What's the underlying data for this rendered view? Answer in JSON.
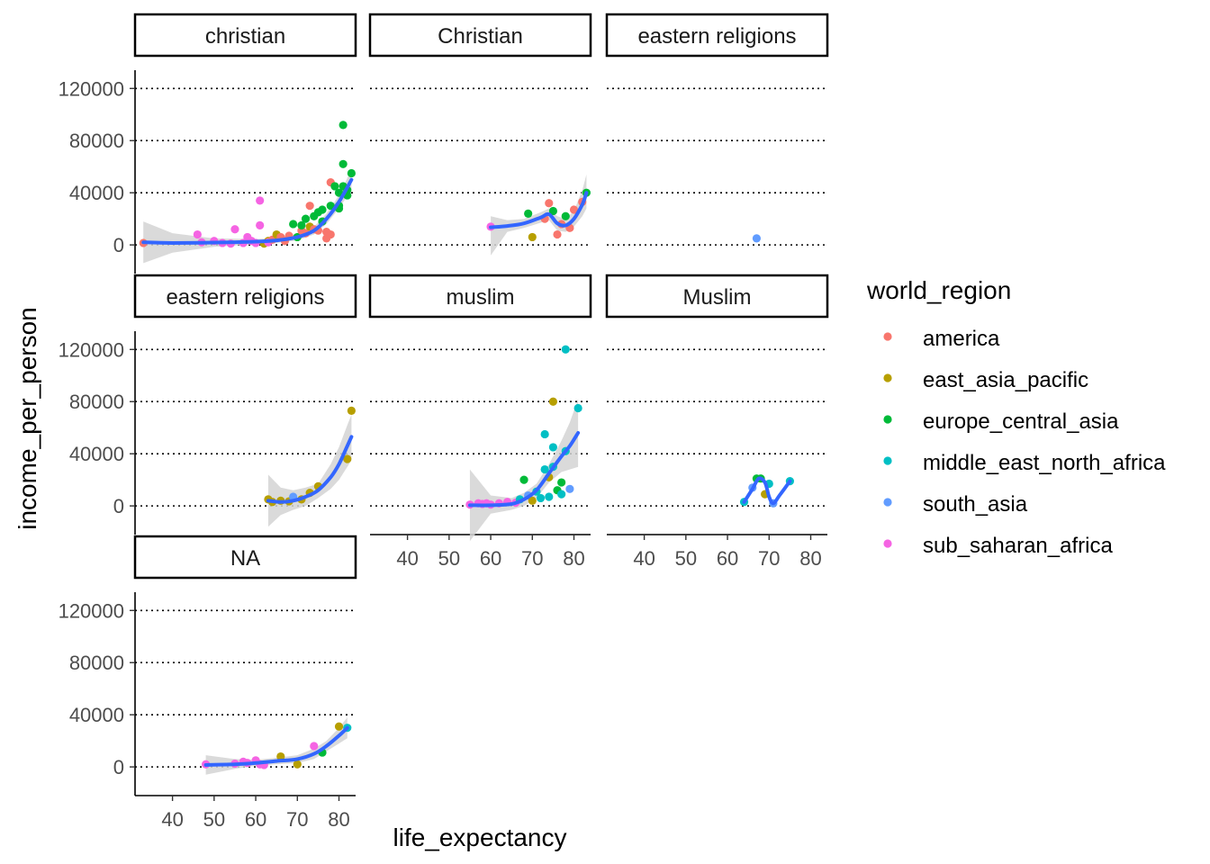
{
  "chart_data": {
    "type": "scatter",
    "xlabel": "life_expectancy",
    "ylabel": "income_per_person",
    "xlim": [
      31,
      84
    ],
    "ylim": [
      -22000,
      134000
    ],
    "x_ticks": [
      40,
      50,
      60,
      70,
      80
    ],
    "y_ticks": [
      0,
      40000,
      80000,
      120000
    ],
    "grid": "major y, dotted",
    "legend": {
      "title": "world_region",
      "position": "right",
      "entries": [
        "america",
        "east_asia_pacific",
        "europe_central_asia",
        "middle_east_north_africa",
        "south_asia",
        "sub_saharan_africa"
      ]
    },
    "colors": {
      "america": "#F8766D",
      "east_asia_pacific": "#B79F00",
      "europe_central_asia": "#00BA38",
      "middle_east_north_africa": "#00BFC4",
      "south_asia": "#619CFF",
      "sub_saharan_africa": "#F564E3",
      "smooth": "#3366FF",
      "ribbon": "#D3D3D3"
    },
    "panels": [
      {
        "title": "christian",
        "points": [
          [
            33,
            1500,
            "america"
          ],
          [
            46,
            8000,
            "sub_saharan_africa"
          ],
          [
            47,
            2000,
            "sub_saharan_africa"
          ],
          [
            50,
            3000,
            "sub_saharan_africa"
          ],
          [
            52,
            1500,
            "sub_saharan_africa"
          ],
          [
            54,
            1000,
            "sub_saharan_africa"
          ],
          [
            55,
            12000,
            "sub_saharan_africa"
          ],
          [
            57,
            1500,
            "sub_saharan_africa"
          ],
          [
            58,
            6000,
            "sub_saharan_africa"
          ],
          [
            59,
            3000,
            "sub_saharan_africa"
          ],
          [
            60,
            1500,
            "sub_saharan_africa"
          ],
          [
            61,
            34000,
            "sub_saharan_africa"
          ],
          [
            61,
            15000,
            "sub_saharan_africa"
          ],
          [
            62,
            1000,
            "east_asia_pacific"
          ],
          [
            63,
            3000,
            "east_asia_pacific"
          ],
          [
            63,
            2000,
            "sub_saharan_africa"
          ],
          [
            64,
            4000,
            "america"
          ],
          [
            65,
            8000,
            "east_asia_pacific"
          ],
          [
            66,
            6000,
            "america"
          ],
          [
            67,
            3000,
            "america"
          ],
          [
            68,
            7000,
            "america"
          ],
          [
            69,
            16000,
            "europe_central_asia"
          ],
          [
            70,
            6000,
            "europe_central_asia"
          ],
          [
            71,
            11000,
            "america"
          ],
          [
            71,
            15000,
            "europe_central_asia"
          ],
          [
            72,
            9000,
            "america"
          ],
          [
            72,
            20000,
            "europe_central_asia"
          ],
          [
            73,
            30000,
            "america"
          ],
          [
            73,
            14000,
            "east_asia_pacific"
          ],
          [
            74,
            12000,
            "america"
          ],
          [
            74,
            22000,
            "europe_central_asia"
          ],
          [
            75,
            11000,
            "america"
          ],
          [
            75,
            25000,
            "europe_central_asia"
          ],
          [
            76,
            18000,
            "europe_central_asia"
          ],
          [
            76,
            27000,
            "europe_central_asia"
          ],
          [
            77,
            10000,
            "america"
          ],
          [
            77,
            5000,
            "america"
          ],
          [
            78,
            8000,
            "america"
          ],
          [
            78,
            30000,
            "europe_central_asia"
          ],
          [
            78,
            48000,
            "america"
          ],
          [
            79,
            45000,
            "europe_central_asia"
          ],
          [
            80,
            28000,
            "europe_central_asia"
          ],
          [
            80,
            40000,
            "europe_central_asia"
          ],
          [
            81,
            62000,
            "europe_central_asia"
          ],
          [
            81,
            45000,
            "europe_central_asia"
          ],
          [
            82,
            38000,
            "europe_central_asia"
          ],
          [
            82,
            42000,
            "europe_central_asia"
          ],
          [
            83,
            55000,
            "europe_central_asia"
          ],
          [
            81,
            92000,
            "europe_central_asia"
          ],
          [
            80,
            30000,
            "europe_central_asia"
          ]
        ],
        "smooth": [
          [
            33,
            2000
          ],
          [
            40,
            1500
          ],
          [
            50,
            1800
          ],
          [
            60,
            2500
          ],
          [
            65,
            3500
          ],
          [
            70,
            6000
          ],
          [
            74,
            11000
          ],
          [
            77,
            20000
          ],
          [
            80,
            33000
          ],
          [
            83,
            50000
          ]
        ],
        "ribbon": [
          [
            33,
            18000,
            -14000
          ],
          [
            40,
            9000,
            -6000
          ],
          [
            50,
            5000,
            -1500
          ],
          [
            60,
            4500,
            500
          ],
          [
            65,
            5500,
            1500
          ],
          [
            70,
            8500,
            3500
          ],
          [
            74,
            14000,
            8000
          ],
          [
            77,
            24000,
            16000
          ],
          [
            80,
            38000,
            28000
          ],
          [
            83,
            58000,
            42000
          ]
        ]
      },
      {
        "title": "Christian",
        "points": [
          [
            60,
            14000,
            "sub_saharan_africa"
          ],
          [
            69,
            24000,
            "europe_central_asia"
          ],
          [
            70,
            6000,
            "east_asia_pacific"
          ],
          [
            73,
            20000,
            "america"
          ],
          [
            74,
            32000,
            "america"
          ],
          [
            75,
            26000,
            "europe_central_asia"
          ],
          [
            76,
            8000,
            "america"
          ],
          [
            77,
            16000,
            "america"
          ],
          [
            78,
            22000,
            "europe_central_asia"
          ],
          [
            79,
            13000,
            "america"
          ],
          [
            80,
            27000,
            "america"
          ],
          [
            82,
            33000,
            "america"
          ],
          [
            83,
            40000,
            "europe_central_asia"
          ]
        ],
        "smooth": [
          [
            60,
            13500
          ],
          [
            64,
            14500
          ],
          [
            68,
            16500
          ],
          [
            72,
            21000
          ],
          [
            74,
            23500
          ],
          [
            76,
            16500
          ],
          [
            78,
            15000
          ],
          [
            80,
            20000
          ],
          [
            82,
            31000
          ],
          [
            83,
            40000
          ]
        ],
        "ribbon": [
          [
            60,
            22000,
            -8000
          ],
          [
            64,
            19000,
            10000
          ],
          [
            68,
            20000,
            13000
          ],
          [
            72,
            25000,
            17000
          ],
          [
            74,
            28000,
            19000
          ],
          [
            76,
            22000,
            11000
          ],
          [
            78,
            20000,
            10000
          ],
          [
            80,
            26000,
            14000
          ],
          [
            82,
            42000,
            22000
          ],
          [
            83,
            54000,
            28000
          ]
        ]
      },
      {
        "title": "eastern   religions",
        "points": [
          [
            67,
            5000,
            "south_asia"
          ]
        ],
        "smooth": [],
        "ribbon": []
      },
      {
        "title": "eastern religions",
        "points": [
          [
            63,
            5000,
            "east_asia_pacific"
          ],
          [
            64,
            3000,
            "east_asia_pacific"
          ],
          [
            66,
            4000,
            "east_asia_pacific"
          ],
          [
            68,
            3500,
            "east_asia_pacific"
          ],
          [
            69,
            7000,
            "south_asia"
          ],
          [
            71,
            5000,
            "east_asia_pacific"
          ],
          [
            73,
            10000,
            "east_asia_pacific"
          ],
          [
            75,
            15000,
            "east_asia_pacific"
          ],
          [
            82,
            36000,
            "east_asia_pacific"
          ],
          [
            83,
            73000,
            "east_asia_pacific"
          ]
        ],
        "smooth": [
          [
            63,
            4000
          ],
          [
            66,
            3000
          ],
          [
            69,
            4000
          ],
          [
            72,
            7000
          ],
          [
            75,
            12000
          ],
          [
            78,
            22000
          ],
          [
            80,
            32000
          ],
          [
            82,
            46000
          ],
          [
            83,
            53000
          ]
        ],
        "ribbon": [
          [
            63,
            24000,
            -16000
          ],
          [
            66,
            14000,
            -7000
          ],
          [
            69,
            12000,
            -3000
          ],
          [
            72,
            14000,
            0
          ],
          [
            75,
            17000,
            6000
          ],
          [
            78,
            32000,
            13000
          ],
          [
            80,
            45000,
            20000
          ],
          [
            82,
            62000,
            30000
          ],
          [
            83,
            70000,
            35000
          ]
        ]
      },
      {
        "title": "muslim",
        "points": [
          [
            55,
            1000,
            "sub_saharan_africa"
          ],
          [
            57,
            2000,
            "sub_saharan_africa"
          ],
          [
            58,
            1500,
            "sub_saharan_africa"
          ],
          [
            59,
            2000,
            "sub_saharan_africa"
          ],
          [
            60,
            1000,
            "sub_saharan_africa"
          ],
          [
            62,
            2000,
            "sub_saharan_africa"
          ],
          [
            64,
            3000,
            "sub_saharan_africa"
          ],
          [
            66,
            2500,
            "sub_saharan_africa"
          ],
          [
            67,
            5000,
            "middle_east_north_africa"
          ],
          [
            68,
            20000,
            "europe_central_asia"
          ],
          [
            69,
            8000,
            "south_asia"
          ],
          [
            70,
            4000,
            "east_asia_pacific"
          ],
          [
            71,
            11000,
            "middle_east_north_africa"
          ],
          [
            72,
            6000,
            "middle_east_north_africa"
          ],
          [
            73,
            55000,
            "middle_east_north_africa"
          ],
          [
            73,
            28000,
            "middle_east_north_africa"
          ],
          [
            74,
            22000,
            "east_asia_pacific"
          ],
          [
            74,
            7000,
            "middle_east_north_africa"
          ],
          [
            75,
            45000,
            "middle_east_north_africa"
          ],
          [
            75,
            80000,
            "east_asia_pacific"
          ],
          [
            75,
            30000,
            "middle_east_north_africa"
          ],
          [
            76,
            12000,
            "europe_central_asia"
          ],
          [
            77,
            18000,
            "europe_central_asia"
          ],
          [
            77,
            9000,
            "middle_east_north_africa"
          ],
          [
            78,
            120000,
            "middle_east_north_africa"
          ],
          [
            78,
            42000,
            "middle_east_north_africa"
          ],
          [
            79,
            13000,
            "south_asia"
          ],
          [
            81,
            75000,
            "middle_east_north_africa"
          ]
        ],
        "smooth": [
          [
            55,
            500
          ],
          [
            60,
            500
          ],
          [
            65,
            1500
          ],
          [
            68,
            5000
          ],
          [
            71,
            12000
          ],
          [
            74,
            25000
          ],
          [
            77,
            38000
          ],
          [
            79,
            46000
          ],
          [
            81,
            56000
          ]
        ],
        "ribbon": [
          [
            55,
            28000,
            -27000
          ],
          [
            60,
            8000,
            -6000
          ],
          [
            65,
            6000,
            -3000
          ],
          [
            68,
            10000,
            0
          ],
          [
            71,
            17000,
            6000
          ],
          [
            74,
            32000,
            18000
          ],
          [
            77,
            50000,
            26000
          ],
          [
            79,
            64000,
            28000
          ],
          [
            81,
            82000,
            30000
          ]
        ]
      },
      {
        "title": "Muslim",
        "points": [
          [
            64,
            3000,
            "middle_east_north_africa"
          ],
          [
            66,
            14000,
            "south_asia"
          ],
          [
            67,
            21000,
            "europe_central_asia"
          ],
          [
            68,
            21000,
            "europe_central_asia"
          ],
          [
            69,
            9000,
            "east_asia_pacific"
          ],
          [
            70,
            17000,
            "middle_east_north_africa"
          ],
          [
            71,
            2000,
            "south_asia"
          ],
          [
            75,
            19000,
            "middle_east_north_africa"
          ]
        ],
        "smooth": [
          [
            64,
            3000
          ],
          [
            66,
            13000
          ],
          [
            67.5,
            21000
          ],
          [
            69,
            18000
          ],
          [
            70,
            7000
          ],
          [
            71,
            2000
          ],
          [
            72.5,
            8000
          ],
          [
            75,
            19000
          ]
        ],
        "ribbon": []
      },
      {
        "title": "NA",
        "points": [
          [
            48,
            2000,
            "sub_saharan_africa"
          ],
          [
            55,
            2500,
            "sub_saharan_africa"
          ],
          [
            57,
            4000,
            "sub_saharan_africa"
          ],
          [
            58,
            3000,
            "sub_saharan_africa"
          ],
          [
            60,
            5000,
            "sub_saharan_africa"
          ],
          [
            61,
            2000,
            "sub_saharan_africa"
          ],
          [
            62,
            1500,
            "sub_saharan_africa"
          ],
          [
            66,
            8000,
            "east_asia_pacific"
          ],
          [
            70,
            2000,
            "east_asia_pacific"
          ],
          [
            74,
            16000,
            "sub_saharan_africa"
          ],
          [
            76,
            11000,
            "europe_central_asia"
          ],
          [
            80,
            31000,
            "east_asia_pacific"
          ],
          [
            82,
            30000,
            "middle_east_north_africa"
          ]
        ],
        "smooth": [
          [
            48,
            1500
          ],
          [
            55,
            2000
          ],
          [
            60,
            3000
          ],
          [
            65,
            4500
          ],
          [
            70,
            6000
          ],
          [
            74,
            10000
          ],
          [
            77,
            16000
          ],
          [
            80,
            24000
          ],
          [
            82,
            30000
          ]
        ],
        "ribbon": [
          [
            48,
            9000,
            -6000
          ],
          [
            55,
            6000,
            -1500
          ],
          [
            60,
            5500,
            800
          ],
          [
            65,
            7000,
            2000
          ],
          [
            70,
            9000,
            3000
          ],
          [
            74,
            14000,
            6000
          ],
          [
            77,
            20000,
            12000
          ],
          [
            80,
            30000,
            18000
          ],
          [
            82,
            38000,
            22000
          ]
        ]
      }
    ]
  }
}
